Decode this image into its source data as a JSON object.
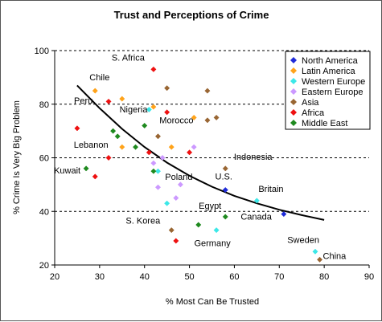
{
  "chart_data": {
    "type": "scatter",
    "title": "Trust and Perceptions of Crime",
    "xlabel": "% Most Can Be Trusted",
    "ylabel": "% Crime Is Very Big Problem",
    "xlim": [
      20,
      90
    ],
    "ylim": [
      20,
      100
    ],
    "x_ticks": [
      "20",
      "30",
      "40",
      "50",
      "60",
      "70",
      "80",
      "90"
    ],
    "y_ticks": [
      "20",
      "40",
      "60",
      "80",
      "100"
    ],
    "grid": "horizontal dashed",
    "legend_position": "top-right",
    "colors": {
      "North America": "#1f2bd9",
      "Latin America": "#ffa31a",
      "Western Europe": "#3ce8e8",
      "Eastern Europe": "#cc99ff",
      "Asia": "#996633",
      "Africa": "#ee1111",
      "Middle East": "#1f8a1f"
    },
    "series": [
      {
        "name": "North America",
        "points": [
          [
            58,
            48
          ],
          [
            71,
            39
          ]
        ]
      },
      {
        "name": "Latin America",
        "points": [
          [
            29,
            85
          ],
          [
            35,
            82
          ],
          [
            42,
            79
          ],
          [
            35,
            64
          ],
          [
            46,
            64
          ],
          [
            51,
            75
          ]
        ]
      },
      {
        "name": "Western Europe",
        "points": [
          [
            41,
            78
          ],
          [
            43,
            55
          ],
          [
            45,
            43
          ],
          [
            56,
            33
          ],
          [
            65,
            44
          ],
          [
            78,
            25
          ]
        ]
      },
      {
        "name": "Eastern Europe",
        "points": [
          [
            42,
            58
          ],
          [
            43,
            49
          ],
          [
            44,
            60
          ],
          [
            47,
            45
          ],
          [
            48,
            50
          ],
          [
            51,
            64
          ]
        ]
      },
      {
        "name": "Asia",
        "points": [
          [
            43,
            68
          ],
          [
            45,
            86
          ],
          [
            46,
            33
          ],
          [
            54,
            85
          ],
          [
            54,
            74
          ],
          [
            56,
            75
          ],
          [
            58,
            56
          ],
          [
            79,
            22
          ]
        ]
      },
      {
        "name": "Africa",
        "points": [
          [
            25,
            71
          ],
          [
            29,
            53
          ],
          [
            32,
            81
          ],
          [
            32,
            60
          ],
          [
            42,
            93
          ],
          [
            45,
            77
          ],
          [
            41,
            62
          ],
          [
            47,
            29
          ],
          [
            50,
            62
          ]
        ]
      },
      {
        "name": "Middle East",
        "points": [
          [
            27,
            56
          ],
          [
            33,
            70
          ],
          [
            34,
            68
          ],
          [
            38,
            64
          ],
          [
            40,
            72
          ],
          [
            42,
            55
          ],
          [
            52,
            35
          ],
          [
            58,
            38
          ]
        ]
      }
    ],
    "trendline": {
      "label": "",
      "points": [
        [
          25,
          87
        ],
        [
          30,
          78.5
        ],
        [
          35,
          70.8
        ],
        [
          40,
          64
        ],
        [
          45,
          58.2
        ],
        [
          50,
          53.3
        ],
        [
          55,
          49.2
        ],
        [
          60,
          45.8
        ],
        [
          65,
          43
        ],
        [
          70,
          40.6
        ],
        [
          75,
          38.6
        ],
        [
          80,
          36.8
        ]
      ]
    },
    "annotations": [
      {
        "text": "S. Africa",
        "x": 42,
        "y": 93,
        "anchor": "end"
      },
      {
        "text": "Chile",
        "x": 29,
        "y": 85,
        "anchor": "start"
      },
      {
        "text": "Peru",
        "x": 29,
        "y": 80,
        "anchor": "end"
      },
      {
        "text": "Nigeria",
        "x": 33,
        "y": 77,
        "anchor": "start"
      },
      {
        "text": "Morocco",
        "x": 41,
        "y": 72,
        "anchor": "start"
      },
      {
        "text": "Lebanon",
        "x": 33,
        "y": 64,
        "anchor": "end"
      },
      {
        "text": "Kuwait",
        "x": 27,
        "y": 56,
        "anchor": "end"
      },
      {
        "text": "Indonesia",
        "x": 59,
        "y": 56,
        "anchor": "start"
      },
      {
        "text": "U.S.",
        "x": 58,
        "y": 48,
        "anchor": "middle"
      },
      {
        "text": "Poland",
        "x": 48,
        "y": 50,
        "anchor": "middle"
      },
      {
        "text": "Britain",
        "x": 65,
        "y": 44,
        "anchor": "start"
      },
      {
        "text": "Egypt",
        "x": 58,
        "y": 38,
        "anchor": "end"
      },
      {
        "text": "Canada",
        "x": 71,
        "y": 39,
        "anchor": "end"
      },
      {
        "text": "S. Korea",
        "x": 46,
        "y": 33,
        "anchor": "end"
      },
      {
        "text": "Germany",
        "x": 56,
        "y": 33,
        "anchor": "middle"
      },
      {
        "text": "Sweden",
        "x": 78,
        "y": 25,
        "anchor": "end"
      },
      {
        "text": "China",
        "x": 79,
        "y": 22,
        "anchor": "start"
      }
    ]
  }
}
